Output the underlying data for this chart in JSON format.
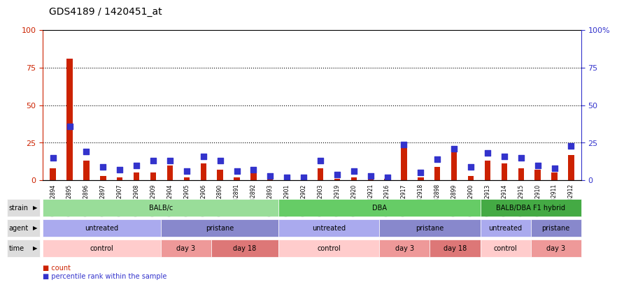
{
  "title": "GDS4189 / 1420451_at",
  "samples": [
    "GSM432894",
    "GSM432895",
    "GSM432896",
    "GSM432897",
    "GSM432907",
    "GSM432908",
    "GSM432909",
    "GSM432904",
    "GSM432905",
    "GSM432906",
    "GSM432890",
    "GSM432891",
    "GSM432892",
    "GSM432893",
    "GSM432901",
    "GSM432902",
    "GSM432903",
    "GSM432919",
    "GSM432920",
    "GSM432921",
    "GSM432916",
    "GSM432917",
    "GSM432918",
    "GSM432898",
    "GSM432899",
    "GSM432900",
    "GSM432913",
    "GSM432914",
    "GSM432915",
    "GSM432910",
    "GSM432911",
    "GSM432912"
  ],
  "count": [
    8,
    81,
    13,
    3,
    2,
    5,
    5,
    10,
    2,
    11,
    7,
    2,
    5,
    4,
    1,
    1,
    8,
    1,
    2,
    1,
    1,
    23,
    2,
    9,
    19,
    3,
    13,
    11,
    8,
    7,
    5,
    17
  ],
  "percentile": [
    15,
    36,
    19,
    9,
    7,
    10,
    13,
    13,
    6,
    16,
    13,
    6,
    7,
    3,
    2,
    2,
    13,
    4,
    6,
    3,
    2,
    24,
    5,
    14,
    21,
    9,
    18,
    16,
    15,
    10,
    8,
    23
  ],
  "bar_color": "#cc2200",
  "dot_color": "#3333cc",
  "ylim": [
    0,
    100
  ],
  "yticks": [
    0,
    25,
    50,
    75,
    100
  ],
  "grid_values": [
    25,
    50,
    75
  ],
  "strain_groups": [
    {
      "label": "BALB/c",
      "start": 0,
      "end": 13,
      "color": "#99dd99"
    },
    {
      "label": "DBA",
      "start": 14,
      "end": 25,
      "color": "#66cc66"
    },
    {
      "label": "BALB/DBA F1 hybrid",
      "start": 26,
      "end": 31,
      "color": "#44aa44"
    }
  ],
  "agent_groups": [
    {
      "label": "untreated",
      "start": 0,
      "end": 6,
      "color": "#aaaaee"
    },
    {
      "label": "pristane",
      "start": 7,
      "end": 13,
      "color": "#8888cc"
    },
    {
      "label": "untreated",
      "start": 14,
      "end": 19,
      "color": "#aaaaee"
    },
    {
      "label": "pristane",
      "start": 20,
      "end": 25,
      "color": "#8888cc"
    },
    {
      "label": "untreated",
      "start": 26,
      "end": 28,
      "color": "#aaaaee"
    },
    {
      "label": "pristane",
      "start": 29,
      "end": 31,
      "color": "#8888cc"
    }
  ],
  "time_groups": [
    {
      "label": "control",
      "start": 0,
      "end": 6,
      "color": "#ffcccc"
    },
    {
      "label": "day 3",
      "start": 7,
      "end": 9,
      "color": "#ee9999"
    },
    {
      "label": "day 18",
      "start": 10,
      "end": 13,
      "color": "#dd7777"
    },
    {
      "label": "control",
      "start": 14,
      "end": 19,
      "color": "#ffcccc"
    },
    {
      "label": "day 3",
      "start": 20,
      "end": 22,
      "color": "#ee9999"
    },
    {
      "label": "day 18",
      "start": 23,
      "end": 25,
      "color": "#dd7777"
    },
    {
      "label": "control",
      "start": 26,
      "end": 28,
      "color": "#ffcccc"
    },
    {
      "label": "day 3",
      "start": 29,
      "end": 31,
      "color": "#ee9999"
    }
  ],
  "legend_count_label": "count",
  "legend_pct_label": "percentile rank within the sample",
  "bg_color": "#ffffff",
  "axis_label_color_left": "#cc2200",
  "axis_label_color_right": "#3333cc"
}
